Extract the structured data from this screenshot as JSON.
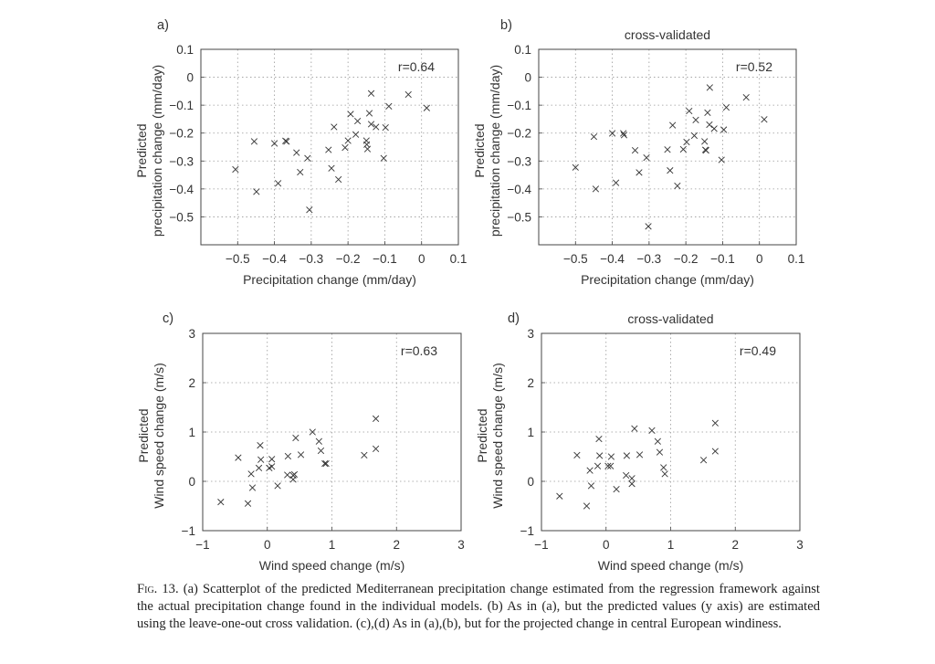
{
  "chart_data": [
    {
      "type": "scatter",
      "panel_label": "a)",
      "title": "",
      "annotation": "r=0.64",
      "xlabel": "Precipitation change (mm/day)",
      "ylabel": [
        "Predicted",
        "precipitation change (mm/day)"
      ],
      "xlim": [
        -0.6,
        0.1
      ],
      "ylim": [
        -0.6,
        0.1
      ],
      "xticks": [
        -0.5,
        -0.4,
        -0.3,
        -0.2,
        -0.1,
        0,
        0.1
      ],
      "xtick_labels": [
        "−0.5",
        "−0.4",
        "−0.3",
        "−0.2",
        "−0.1",
        "0",
        "0.1"
      ],
      "yticks": [
        0.1,
        0,
        -0.1,
        -0.2,
        -0.3,
        -0.4,
        -0.5
      ],
      "ytick_labels": [
        "0.1",
        "0",
        "−0.1",
        "−0.2",
        "−0.3",
        "−0.4",
        "−0.5"
      ],
      "grid": true,
      "marker": "x",
      "points": [
        [
          -0.506,
          -0.33
        ],
        [
          -0.455,
          -0.23
        ],
        [
          -0.449,
          -0.41
        ],
        [
          -0.4,
          -0.237
        ],
        [
          -0.39,
          -0.38
        ],
        [
          -0.37,
          -0.228
        ],
        [
          -0.367,
          -0.23
        ],
        [
          -0.34,
          -0.27
        ],
        [
          -0.33,
          -0.34
        ],
        [
          -0.31,
          -0.29
        ],
        [
          -0.305,
          -0.475
        ],
        [
          -0.253,
          -0.26
        ],
        [
          -0.245,
          -0.326
        ],
        [
          -0.238,
          -0.178
        ],
        [
          -0.226,
          -0.366
        ],
        [
          -0.208,
          -0.252
        ],
        [
          -0.2,
          -0.227
        ],
        [
          -0.193,
          -0.132
        ],
        [
          -0.179,
          -0.205
        ],
        [
          -0.174,
          -0.157
        ],
        [
          -0.15,
          -0.227
        ],
        [
          -0.149,
          -0.241
        ],
        [
          -0.147,
          -0.257
        ],
        [
          -0.142,
          -0.129
        ],
        [
          -0.137,
          -0.058
        ],
        [
          -0.137,
          -0.168
        ],
        [
          -0.124,
          -0.178
        ],
        [
          -0.103,
          -0.29
        ],
        [
          -0.098,
          -0.18
        ],
        [
          -0.089,
          -0.104
        ],
        [
          -0.036,
          -0.062
        ],
        [
          0.014,
          -0.11
        ]
      ]
    },
    {
      "type": "scatter",
      "panel_label": "b)",
      "title": "cross-validated",
      "annotation": "r=0.52",
      "xlabel": "Precipitation change (mm/day)",
      "ylabel": [
        "Predicted",
        "precipitation change (mm/day)"
      ],
      "xlim": [
        -0.6,
        0.1
      ],
      "ylim": [
        -0.6,
        0.1
      ],
      "xticks": [
        -0.5,
        -0.4,
        -0.3,
        -0.2,
        -0.1,
        0,
        0.1
      ],
      "xtick_labels": [
        "−0.5",
        "−0.4",
        "−0.3",
        "−0.2",
        "−0.1",
        "0",
        "0.1"
      ],
      "yticks": [
        0.1,
        0,
        -0.1,
        -0.2,
        -0.3,
        -0.4,
        -0.5
      ],
      "ytick_labels": [
        "0.1",
        "0",
        "−0.1",
        "−0.2",
        "−0.3",
        "−0.4",
        "−0.5"
      ],
      "grid": true,
      "marker": "x",
      "points": [
        [
          -0.5,
          -0.323
        ],
        [
          -0.45,
          -0.213
        ],
        [
          -0.445,
          -0.4
        ],
        [
          -0.4,
          -0.201
        ],
        [
          -0.39,
          -0.378
        ],
        [
          -0.37,
          -0.201
        ],
        [
          -0.368,
          -0.207
        ],
        [
          -0.338,
          -0.262
        ],
        [
          -0.327,
          -0.341
        ],
        [
          -0.307,
          -0.288
        ],
        [
          -0.302,
          -0.534
        ],
        [
          -0.25,
          -0.259
        ],
        [
          -0.243,
          -0.334
        ],
        [
          -0.236,
          -0.172
        ],
        [
          -0.223,
          -0.389
        ],
        [
          -0.207,
          -0.258
        ],
        [
          -0.198,
          -0.232
        ],
        [
          -0.191,
          -0.121
        ],
        [
          -0.177,
          -0.209
        ],
        [
          -0.173,
          -0.153
        ],
        [
          -0.149,
          -0.23
        ],
        [
          -0.147,
          -0.26
        ],
        [
          -0.145,
          -0.262
        ],
        [
          -0.141,
          -0.127
        ],
        [
          -0.135,
          -0.037
        ],
        [
          -0.136,
          -0.17
        ],
        [
          -0.123,
          -0.184
        ],
        [
          -0.103,
          -0.296
        ],
        [
          -0.097,
          -0.188
        ],
        [
          -0.09,
          -0.108
        ],
        [
          -0.036,
          -0.072
        ],
        [
          0.013,
          -0.151
        ]
      ]
    },
    {
      "type": "scatter",
      "panel_label": "c)",
      "title": "",
      "annotation": "r=0.63",
      "xlabel": "Wind speed change (m/s)",
      "ylabel": [
        "Predicted",
        "Wind speed change (m/s)"
      ],
      "xlim": [
        -1,
        3
      ],
      "ylim": [
        -1,
        3
      ],
      "xticks": [
        -1,
        0,
        1,
        2,
        3
      ],
      "xtick_labels": [
        "−1",
        "0",
        "1",
        "2",
        "3"
      ],
      "yticks": [
        3,
        2,
        1,
        0,
        -1
      ],
      "ytick_labels": [
        "3",
        "2",
        "1",
        "0",
        "−1"
      ],
      "grid": true,
      "marker": "x",
      "points": [
        [
          -0.72,
          -0.42
        ],
        [
          -0.45,
          0.48
        ],
        [
          -0.3,
          -0.45
        ],
        [
          -0.25,
          0.15
        ],
        [
          -0.23,
          -0.13
        ],
        [
          -0.13,
          0.27
        ],
        [
          -0.11,
          0.73
        ],
        [
          -0.1,
          0.44
        ],
        [
          0.03,
          0.27
        ],
        [
          0.07,
          0.3
        ],
        [
          0.07,
          0.45
        ],
        [
          0.16,
          -0.09
        ],
        [
          0.31,
          0.13
        ],
        [
          0.32,
          0.51
        ],
        [
          0.4,
          0.12
        ],
        [
          0.4,
          0.04
        ],
        [
          0.42,
          0.14
        ],
        [
          0.44,
          0.88
        ],
        [
          0.52,
          0.54
        ],
        [
          0.7,
          1.0
        ],
        [
          0.8,
          0.81
        ],
        [
          0.83,
          0.62
        ],
        [
          0.89,
          0.36
        ],
        [
          0.91,
          0.36
        ],
        [
          1.5,
          0.53
        ],
        [
          1.68,
          1.27
        ],
        [
          1.68,
          0.66
        ]
      ]
    },
    {
      "type": "scatter",
      "panel_label": "d)",
      "title": "cross-validated",
      "annotation": "r=0.49",
      "xlabel": "Wind speed change (m/s)",
      "ylabel": [
        "Predicted",
        "Wind speed change (m/s)"
      ],
      "xlim": [
        -1,
        3
      ],
      "ylim": [
        -1,
        3
      ],
      "xticks": [
        -1,
        0,
        1,
        2,
        3
      ],
      "xtick_labels": [
        "−1",
        "0",
        "1",
        "2",
        "3"
      ],
      "yticks": [
        3,
        2,
        1,
        0,
        -1
      ],
      "ytick_labels": [
        "3",
        "2",
        "1",
        "0",
        "−1"
      ],
      "grid": true,
      "marker": "x",
      "points": [
        [
          -0.72,
          -0.3
        ],
        [
          -0.45,
          0.53
        ],
        [
          -0.3,
          -0.5
        ],
        [
          -0.25,
          0.22
        ],
        [
          -0.23,
          -0.09
        ],
        [
          -0.13,
          0.31
        ],
        [
          -0.11,
          0.86
        ],
        [
          -0.1,
          0.52
        ],
        [
          0.03,
          0.31
        ],
        [
          0.07,
          0.31
        ],
        [
          0.08,
          0.5
        ],
        [
          0.16,
          -0.16
        ],
        [
          0.31,
          0.12
        ],
        [
          0.32,
          0.52
        ],
        [
          0.4,
          0.06
        ],
        [
          0.4,
          -0.05
        ],
        [
          0.44,
          1.07
        ],
        [
          0.52,
          0.54
        ],
        [
          0.71,
          1.03
        ],
        [
          0.8,
          0.81
        ],
        [
          0.83,
          0.59
        ],
        [
          0.89,
          0.28
        ],
        [
          0.91,
          0.15
        ],
        [
          1.51,
          0.43
        ],
        [
          1.69,
          1.18
        ],
        [
          1.69,
          0.61
        ]
      ]
    }
  ],
  "caption": {
    "figure_label": "Fig. 13.",
    "text": "(a) Scatterplot of the predicted Mediterranean precipitation change estimated from the regression framework against the actual precipitation change found in the individual models. (b) As in (a), but the predicted values (y axis) are estimated using the leave-one-out cross validation. (c),(d) As in (a),(b), but for the projected change in central European windiness."
  }
}
